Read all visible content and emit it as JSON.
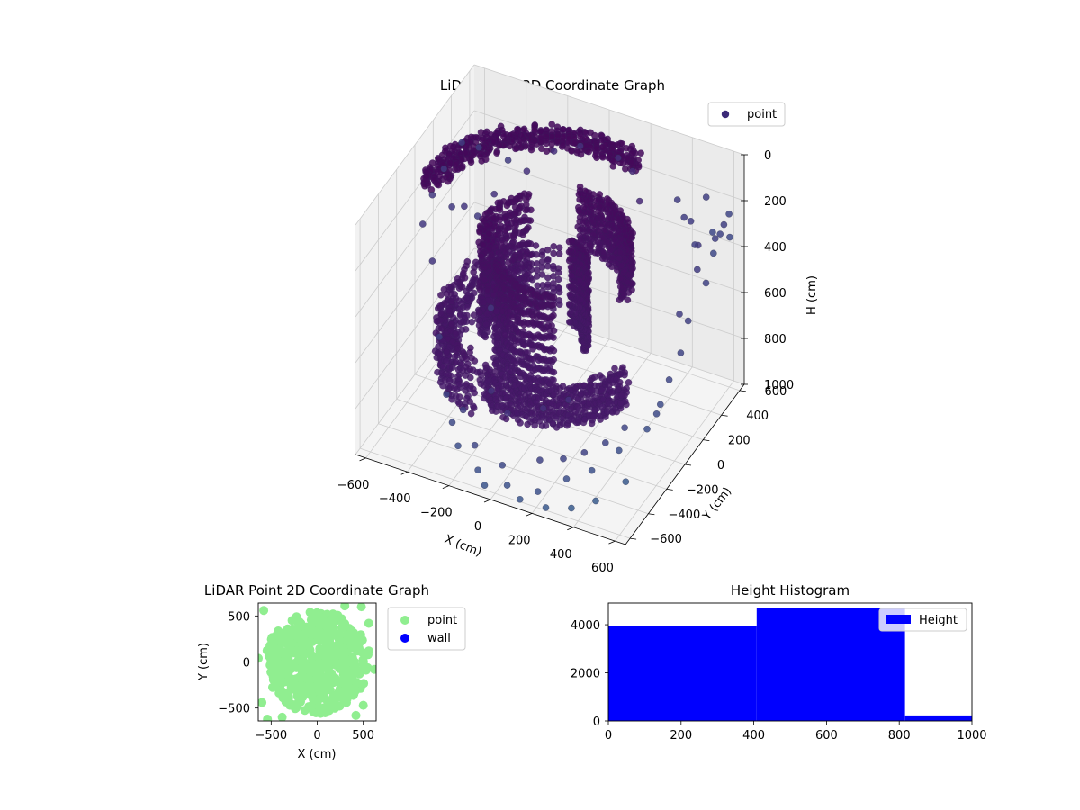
{
  "colors": {
    "pane_left": "#f2f2f2",
    "pane_right": "#ebebeb",
    "pane_floor": "#f4f4f4",
    "grid": "#cccccc",
    "points_2d": "#90ee90",
    "wall": "#0000ff",
    "hist_bar": "#0000ff",
    "point_3d_legend": "#3b2a78",
    "colormap": [
      "#440154",
      "#472d7b",
      "#3b528b",
      "#2c728e",
      "#21918c",
      "#28ae80"
    ]
  },
  "chart_data": [
    {
      "type": "scatter",
      "projection": "3d",
      "title": "LiDAR Point 3D Coordinate Graph",
      "xlabel": "X (cm)",
      "ylabel": "Y (cm)",
      "zlabel": "H (cm)",
      "xticks": [
        "−600",
        "−400",
        "−200",
        "0",
        "200",
        "400",
        "600"
      ],
      "yticks": [
        "−600",
        "−400",
        "−200",
        "0",
        "200",
        "400",
        "600"
      ],
      "zticks": [
        "0",
        "200",
        "400",
        "600",
        "800",
        "1000"
      ],
      "xlim": [
        -650,
        650
      ],
      "ylim": [
        -650,
        650
      ],
      "zlim": [
        0,
        1000
      ],
      "z_inverted": true,
      "legend": {
        "placement": "top-right",
        "entries": [
          "point"
        ]
      },
      "grid": true,
      "colormap": "viridis",
      "dense_bands": [
        {
          "r": 560,
          "a0": 1.25,
          "a1": 3.2,
          "z0": 80,
          "z1": 150
        },
        {
          "r": 470,
          "a0": 1.9,
          "a1": 4.3,
          "z0": 550,
          "z1": 800
        },
        {
          "r": 390,
          "a0": 4.3,
          "a1": 6.1,
          "z0": 620,
          "z1": 780
        },
        {
          "r": 340,
          "a0": 0.2,
          "a1": 1.6,
          "z0": 180,
          "z1": 420
        },
        {
          "r": 290,
          "a0": 2.3,
          "a1": 3.6,
          "z0": 200,
          "z1": 650
        },
        {
          "r": 230,
          "a0": 3.6,
          "a1": 5.2,
          "z0": 320,
          "z1": 740
        },
        {
          "r": 160,
          "a0": 0.0,
          "a1": 1.4,
          "z0": 300,
          "z1": 650
        }
      ],
      "scatter_points": [
        [
          -620,
          250,
          230
        ],
        [
          -610,
          100,
          260
        ],
        [
          -600,
          400,
          190
        ],
        [
          -590,
          -50,
          300
        ],
        [
          -560,
          200,
          350
        ],
        [
          -540,
          450,
          220
        ],
        [
          -500,
          -150,
          380
        ],
        [
          -480,
          300,
          420
        ],
        [
          -430,
          520,
          280
        ],
        [
          -400,
          -300,
          600
        ],
        [
          -350,
          150,
          700
        ],
        [
          -300,
          -450,
          740
        ],
        [
          -250,
          -500,
          820
        ],
        [
          -200,
          -550,
          880
        ],
        [
          -150,
          -480,
          900
        ],
        [
          -100,
          -560,
          950
        ],
        [
          -50,
          -600,
          980
        ],
        [
          0,
          -520,
          920
        ],
        [
          50,
          -580,
          960
        ],
        [
          120,
          -600,
          990
        ],
        [
          180,
          -540,
          970
        ],
        [
          240,
          -590,
          995
        ],
        [
          300,
          -500,
          900
        ],
        [
          350,
          -560,
          980
        ],
        [
          400,
          -450,
          860
        ],
        [
          450,
          -520,
          940
        ],
        [
          500,
          -380,
          780
        ],
        [
          550,
          -420,
          880
        ],
        [
          600,
          -300,
          700
        ],
        [
          620,
          -200,
          640
        ],
        [
          580,
          100,
          420
        ],
        [
          600,
          250,
          300
        ],
        [
          560,
          350,
          260
        ],
        [
          620,
          400,
          240
        ],
        [
          500,
          450,
          330
        ],
        [
          450,
          520,
          280
        ],
        [
          400,
          560,
          300
        ],
        [
          350,
          600,
          260
        ],
        [
          600,
          500,
          280
        ],
        [
          620,
          560,
          320
        ],
        [
          590,
          620,
          260
        ],
        [
          520,
          600,
          350
        ],
        [
          480,
          620,
          220
        ],
        [
          550,
          540,
          400
        ],
        [
          620,
          300,
          380
        ],
        [
          600,
          150,
          470
        ],
        [
          630,
          0,
          520
        ],
        [
          610,
          -80,
          600
        ],
        [
          580,
          -150,
          720
        ],
        [
          640,
          450,
          200
        ],
        [
          300,
          300,
          120
        ],
        [
          200,
          450,
          100
        ],
        [
          100,
          520,
          110
        ],
        [
          -100,
          560,
          140
        ],
        [
          -200,
          500,
          160
        ],
        [
          -300,
          430,
          240
        ],
        [
          -400,
          300,
          300
        ],
        [
          -500,
          200,
          330
        ],
        [
          100,
          -300,
          760
        ],
        [
          200,
          -250,
          720
        ],
        [
          -50,
          -350,
          800
        ],
        [
          250,
          -420,
          870
        ],
        [
          -150,
          -300,
          760
        ],
        [
          400,
          -300,
          820
        ],
        [
          320,
          -350,
          860
        ],
        [
          150,
          -450,
          890
        ],
        [
          -250,
          -380,
          830
        ],
        [
          470,
          -250,
          760
        ]
      ]
    },
    {
      "type": "scatter",
      "title": "LiDAR Point 2D Coordinate Graph",
      "xlabel": "X (cm)",
      "ylabel": "Y (cm)",
      "xticks": [
        "−500",
        "0",
        "500"
      ],
      "yticks": [
        "500",
        "0",
        "−500"
      ],
      "xlim": [
        -640,
        640
      ],
      "ylim": [
        -640,
        640
      ],
      "legend": {
        "placement": "right",
        "entries": [
          "point",
          "wall"
        ]
      },
      "series": [
        {
          "name": "point",
          "blob": {
            "cx": 0,
            "cy": 0,
            "r": 560
          },
          "outliers": [
            [
              -580,
              560
            ],
            [
              480,
              600
            ],
            [
              -600,
              -440
            ],
            [
              -540,
              -620
            ],
            [
              560,
              120
            ],
            [
              620,
              -80
            ],
            [
              -640,
              40
            ],
            [
              500,
              -470
            ],
            [
              420,
              -580
            ],
            [
              560,
              420
            ],
            [
              -380,
              -600
            ],
            [
              300,
              610
            ]
          ]
        },
        {
          "name": "wall",
          "values": []
        }
      ]
    },
    {
      "type": "bar",
      "title": "Height Histogram",
      "xlim": [
        0,
        1000
      ],
      "ylim": [
        0,
        4900
      ],
      "xticks": [
        "0",
        "200",
        "400",
        "600",
        "800",
        "1000"
      ],
      "yticks": [
        "0",
        "2000",
        "4000"
      ],
      "legend": {
        "placement": "top-right",
        "entries": [
          "Height"
        ]
      },
      "bins": [
        {
          "x0": 0,
          "x1": 408,
          "count": 3950
        },
        {
          "x0": 408,
          "x1": 816,
          "count": 4700
        },
        {
          "x0": 816,
          "x1": 1000,
          "count": 230
        }
      ]
    }
  ]
}
